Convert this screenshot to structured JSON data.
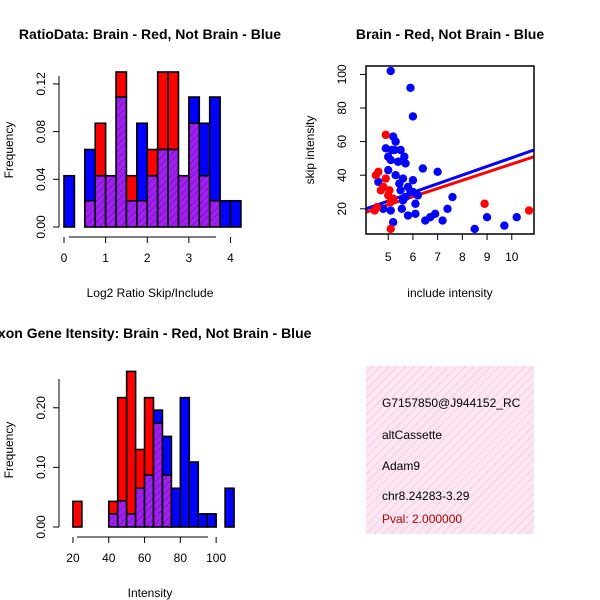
{
  "colors": {
    "red": "#ff0000",
    "blue": "#0000ff",
    "purple": "#a020f0",
    "panel_bg": "#fbe6f2",
    "pval": "#b00000"
  },
  "chart_data": [
    {
      "id": "ratio-hist",
      "type": "bar",
      "title": "RatioData: Brain - Red, Not Brain - Blue",
      "xlabel": "Log2 Ratio Skip/Include",
      "ylabel": "Frequency",
      "xlim": [
        0,
        4.3
      ],
      "ylim": [
        0,
        0.13
      ],
      "xticks": [
        "0",
        "1",
        "2",
        "3",
        "4"
      ],
      "yticks": [
        "0.00",
        "0.04",
        "0.08",
        "0.12"
      ],
      "bin_width": 0.25,
      "bin_starts": [
        0.0,
        0.25,
        0.5,
        0.75,
        1.0,
        1.25,
        1.5,
        1.75,
        2.0,
        2.25,
        2.5,
        2.75,
        3.0,
        3.25,
        3.5,
        3.75,
        4.0
      ],
      "series": [
        {
          "name": "Brain",
          "color": "red",
          "values": [
            0,
            0,
            0.022,
            0.087,
            0.043,
            0.13,
            0.043,
            0.022,
            0.065,
            0.13,
            0.13,
            0.043,
            0.087,
            0.043,
            0.022,
            0,
            0
          ]
        },
        {
          "name": "Not Brain",
          "color": "blue",
          "values": [
            0.043,
            0,
            0.065,
            0.043,
            0.043,
            0.109,
            0.022,
            0.087,
            0.043,
            0.065,
            0.065,
            0.043,
            0.109,
            0.087,
            0.109,
            0.022,
            0.022
          ]
        }
      ]
    },
    {
      "id": "scatter",
      "type": "scatter",
      "title": "Brain - Red, Not Brain - Blue",
      "xlabel": "include intensity",
      "ylabel": "skip intensity",
      "xlim": [
        4.1,
        10.9
      ],
      "ylim": [
        5,
        105
      ],
      "xticks": [
        "5",
        "6",
        "7",
        "8",
        "9",
        "10"
      ],
      "yticks": [
        "20",
        "40",
        "60",
        "80",
        "100"
      ],
      "series": [
        {
          "name": "Brain",
          "color": "red",
          "x": [
            4.5,
            4.6,
            4.7,
            4.8,
            4.9,
            5.0,
            5.05,
            5.2,
            4.55,
            4.9,
            5.1,
            4.45,
            5.1,
            8.9,
            10.7
          ],
          "y": [
            40,
            42,
            31,
            33,
            64,
            28,
            31,
            26,
            21,
            38,
            24,
            19,
            8,
            23,
            19
          ]
        },
        {
          "name": "Not Brain",
          "color": "blue",
          "x": [
            5.1,
            5.9,
            6.0,
            5.2,
            5.3,
            5.25,
            5.5,
            5.65,
            5.4,
            5.7,
            5.0,
            5.1,
            5.15,
            5.6,
            6.4,
            7.0,
            6.0,
            5.8,
            5.9,
            5.5,
            5.7,
            6.0,
            6.2,
            5.45,
            5.6,
            5.55,
            6.1,
            6.1,
            5.8,
            5.1,
            4.8,
            4.6,
            4.9,
            5.0,
            5.3,
            5.2,
            6.5,
            6.9,
            6.7,
            7.2,
            7.4,
            7.6,
            8.5,
            9.0,
            9.7,
            10.2
          ],
          "y": [
            102,
            92,
            75,
            63,
            60,
            55,
            55,
            51,
            48,
            47,
            51,
            49,
            55,
            38,
            44,
            42,
            37,
            33,
            30,
            31,
            27,
            30,
            28,
            35,
            25,
            20,
            23,
            17,
            16,
            19,
            20,
            36,
            56,
            43,
            40,
            12,
            13,
            17,
            15,
            13,
            20,
            27,
            8,
            15,
            10,
            15
          ]
        }
      ],
      "fit_lines": [
        {
          "name": "Brain",
          "color": "red",
          "x": [
            4.1,
            10.9
          ],
          "y": [
            18,
            51
          ]
        },
        {
          "name": "Not Brain",
          "color": "blue",
          "x": [
            4.1,
            10.9
          ],
          "y": [
            20,
            55
          ]
        }
      ]
    },
    {
      "id": "intensity-hist",
      "type": "bar",
      "title": "Exon Gene Itensity: Brain - Red, Not Brain - Blue",
      "xlabel": "Intensity",
      "ylabel": "Frequency",
      "xlim": [
        15,
        115
      ],
      "ylim": [
        0,
        0.26
      ],
      "xticks": [
        "20",
        "40",
        "60",
        "80",
        "100"
      ],
      "yticks": [
        "0.00",
        "0.10",
        "0.20"
      ],
      "bin_width": 5,
      "bin_starts": [
        15,
        20,
        25,
        30,
        35,
        40,
        45,
        50,
        55,
        60,
        65,
        70,
        75,
        80,
        85,
        90,
        95,
        100,
        105
      ],
      "series": [
        {
          "name": "Brain",
          "color": "red",
          "values": [
            0,
            0.043,
            0,
            0,
            0,
            0.043,
            0.217,
            0.261,
            0.13,
            0.217,
            0.174,
            0.087,
            0,
            0,
            0,
            0,
            0,
            0,
            0
          ]
        },
        {
          "name": "Not Brain",
          "color": "blue",
          "values": [
            0,
            0,
            0,
            0,
            0,
            0.022,
            0.044,
            0.022,
            0.065,
            0.087,
            0.196,
            0.152,
            0.065,
            0.217,
            0.109,
            0.022,
            0.022,
            0,
            0.065
          ]
        }
      ]
    }
  ],
  "info": {
    "probe_id": "G7157850@J944152_RC",
    "event_type": "altCassette",
    "gene": "Adam9",
    "location": "chr8.24283-3.29",
    "pval": "Pval: 2.000000"
  }
}
